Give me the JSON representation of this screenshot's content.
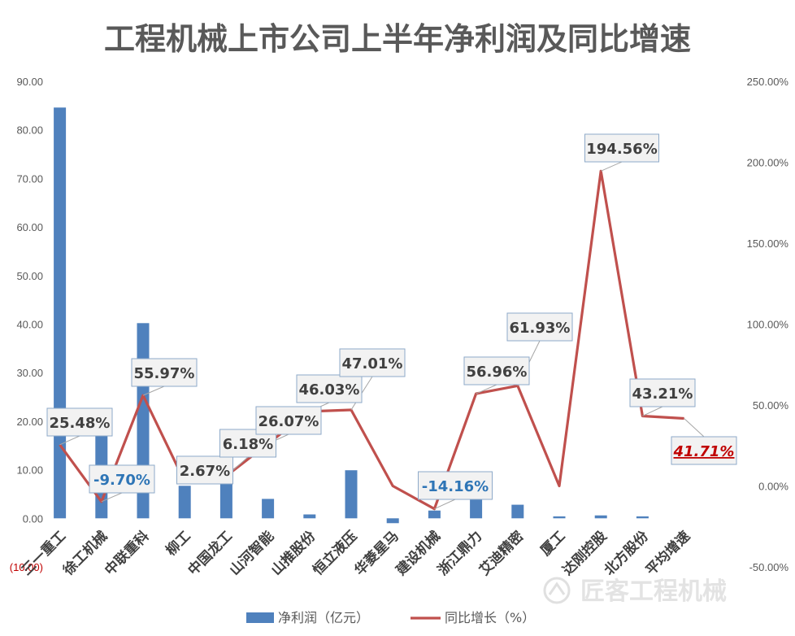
{
  "chart_data": {
    "type": "bar",
    "title": "工程机械上市公司上半年净利润及同比增速",
    "categories": [
      "三一重工",
      "徐工机械",
      "中联重科",
      "柳工",
      "中国龙工",
      "山河智能",
      "山推股份",
      "恒立液压",
      "华菱星马",
      "建设机械",
      "浙江鼎力",
      "艾迪精密",
      "厦工",
      "达刚控股",
      "北方股份",
      "平均增速"
    ],
    "left_axis": {
      "ylim": [
        -10,
        90
      ],
      "ticks": [
        -10,
        0,
        10,
        20,
        30,
        40,
        50,
        60,
        70,
        80,
        90
      ],
      "tick_labels": [
        "(10.00)",
        "0.00",
        "10.00",
        "20.00",
        "30.00",
        "40.00",
        "50.00",
        "60.00",
        "70.00",
        "80.00",
        "90.00"
      ]
    },
    "right_axis": {
      "ylim": [
        -50,
        250
      ],
      "ticks": [
        -50,
        0,
        50,
        100,
        150,
        200,
        250
      ],
      "tick_labels": [
        "-50.00%",
        "0.00%",
        "50.00%",
        "100.00%",
        "150.00%",
        "200.00%",
        "250.00%"
      ]
    },
    "series": [
      {
        "name": "净利润（亿元）",
        "type": "bar",
        "axis": "left",
        "color": "#4f81bd",
        "values": [
          84.6,
          20.6,
          40.2,
          6.7,
          9.4,
          4.0,
          0.8,
          9.9,
          -1.0,
          1.6,
          4.0,
          2.8,
          0.4,
          0.6,
          0.4,
          null
        ]
      },
      {
        "name": "同比增长（%）",
        "type": "line",
        "axis": "right",
        "color": "#c0504d",
        "values": [
          25.48,
          -9.7,
          55.97,
          2.67,
          6.18,
          26.07,
          46.03,
          47.01,
          0.0,
          -14.16,
          56.96,
          61.93,
          0.0,
          194.56,
          43.21,
          41.71
        ]
      }
    ],
    "data_labels": [
      {
        "text": "25.48%",
        "index": 0,
        "style": "normal"
      },
      {
        "text": "-9.70%",
        "index": 1,
        "style": "negative"
      },
      {
        "text": "55.97%",
        "index": 2,
        "style": "normal"
      },
      {
        "text": "2.67%",
        "index": 3,
        "style": "normal"
      },
      {
        "text": "6.18%",
        "index": 4,
        "style": "normal"
      },
      {
        "text": "26.07%",
        "index": 5,
        "style": "normal"
      },
      {
        "text": "46.03%",
        "index": 6,
        "style": "normal"
      },
      {
        "text": "47.01%",
        "index": 7,
        "style": "normal"
      },
      {
        "text": "-14.16%",
        "index": 9,
        "style": "negative"
      },
      {
        "text": "56.96%",
        "index": 10,
        "style": "normal"
      },
      {
        "text": "61.93%",
        "index": 11,
        "style": "normal"
      },
      {
        "text": "194.56%",
        "index": 13,
        "style": "normal"
      },
      {
        "text": "43.21%",
        "index": 14,
        "style": "normal"
      },
      {
        "text": "41.71%",
        "index": 15,
        "style": "average"
      }
    ],
    "legend_position": "bottom",
    "grid": false
  },
  "watermark": "匠客工程机械",
  "colors": {
    "title": "#595959",
    "tick_text": "#595959",
    "negative_tick": "#c00000",
    "label_box_fill": "#f2f2f2",
    "label_box_border": "#8eaac9",
    "label_text": "#404040",
    "label_negative_text": "#2e75b6",
    "label_average_text": "#c00000"
  }
}
